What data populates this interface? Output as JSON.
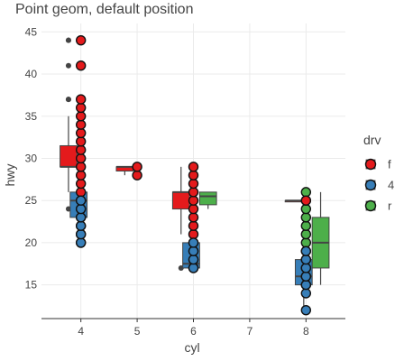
{
  "chart_data": {
    "type": "scatter",
    "title": "Point geom, default position",
    "xlabel": "cyl",
    "ylabel": "hwy",
    "xlim": [
      3.3,
      8.7
    ],
    "ylim": [
      11,
      46
    ],
    "x_ticks": [
      4,
      5,
      6,
      7,
      8
    ],
    "y_ticks": [
      15,
      20,
      25,
      30,
      35,
      40,
      45
    ],
    "grid": true,
    "legend": {
      "title": "drv",
      "position": "right",
      "entries": [
        {
          "key": "f",
          "label": "f",
          "color": "#e41a1c"
        },
        {
          "key": "4",
          "label": "4",
          "color": "#377eb8"
        },
        {
          "key": "r",
          "label": "r",
          "color": "#4daf4a"
        }
      ]
    },
    "boxplots": [
      {
        "drv": "f",
        "cyl": 4,
        "lower_whisker": 26,
        "q1": 29,
        "median": 29,
        "q3": 31.5,
        "upper_whisker": 35,
        "outliers": [
          24,
          37,
          37,
          41,
          44,
          44
        ]
      },
      {
        "drv": "4",
        "cyl": 4,
        "lower_whisker": 20,
        "q1": 23,
        "median": 25,
        "q3": 26,
        "upper_whisker": 26,
        "outliers": []
      },
      {
        "drv": "f",
        "cyl": 5,
        "lower_whisker": 28,
        "q1": 28.5,
        "median": 29,
        "q3": 29,
        "upper_whisker": 29,
        "outliers": []
      },
      {
        "drv": "f",
        "cyl": 6,
        "lower_whisker": 21,
        "q1": 24,
        "median": 26,
        "q3": 26,
        "upper_whisker": 29,
        "outliers": [
          17
        ]
      },
      {
        "drv": "4",
        "cyl": 6,
        "lower_whisker": 17,
        "q1": 17,
        "median": 17.5,
        "q3": 20,
        "upper_whisker": 20,
        "outliers": []
      },
      {
        "drv": "r",
        "cyl": 6,
        "lower_whisker": 24,
        "q1": 24.5,
        "median": 25.5,
        "q3": 26,
        "upper_whisker": 26,
        "outliers": []
      },
      {
        "drv": "f",
        "cyl": 8,
        "lower_whisker": 25,
        "q1": 25,
        "median": 25,
        "q3": 25,
        "upper_whisker": 25,
        "outliers": []
      },
      {
        "drv": "4",
        "cyl": 8,
        "lower_whisker": 12,
        "q1": 15,
        "median": 16,
        "q3": 18,
        "upper_whisker": 18,
        "outliers": []
      },
      {
        "drv": "r",
        "cyl": 8,
        "lower_whisker": 15,
        "q1": 17,
        "median": 20,
        "q3": 23,
        "upper_whisker": 26,
        "outliers": []
      }
    ],
    "points": [
      {
        "drv": "f",
        "cyl": 4,
        "hwy": [
          20,
          21,
          22,
          23,
          24,
          25,
          26,
          27,
          28,
          29,
          30,
          31,
          32,
          33,
          34,
          35,
          36,
          37,
          41,
          44
        ]
      },
      {
        "drv": "4",
        "cyl": 4,
        "hwy": [
          20,
          21,
          22,
          23,
          24,
          25
        ]
      },
      {
        "drv": "f",
        "cyl": 5,
        "hwy": [
          28,
          29
        ]
      },
      {
        "drv": "f",
        "cyl": 6,
        "hwy": [
          17,
          18,
          19,
          20,
          21,
          22,
          23,
          24,
          25,
          26,
          27,
          28,
          29
        ]
      },
      {
        "drv": "4",
        "cyl": 6,
        "hwy": [
          17,
          18,
          19,
          20
        ]
      },
      {
        "drv": "r",
        "cyl": 8,
        "hwy": [
          15,
          16,
          17,
          18,
          19,
          20,
          21,
          22,
          23,
          24,
          25,
          26
        ]
      },
      {
        "drv": "4",
        "cyl": 8,
        "hwy": [
          12,
          14,
          15,
          16,
          17,
          18,
          19
        ]
      },
      {
        "drv": "f",
        "cyl": 8,
        "hwy": [
          25
        ]
      }
    ]
  }
}
